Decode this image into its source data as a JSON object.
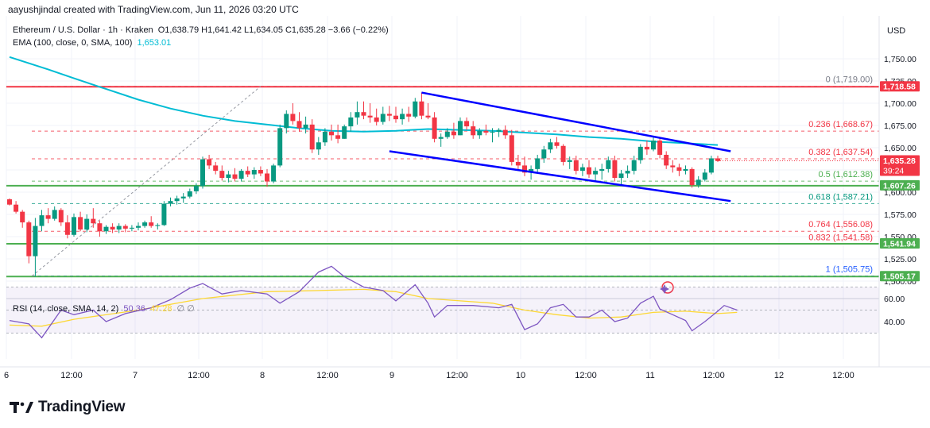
{
  "header": {
    "attribution": "aayushjindal created with TradingView.com, Jun 11, 2026 03:20 UTC"
  },
  "legend": {
    "symbol": "Ethereum / U.S. Dollar · 1h · Kraken",
    "ohlc": "O1,638.79 H1,641.42 L1,634.05 C1,635.28 −3.66 (−0.22%)",
    "ema_label": "EMA (100, close, 0, SMA, 100)",
    "ema_value": "1,653.01",
    "rsi_label": "RSI (14, close, SMA, 14, 2)",
    "rsi_value": "50.36",
    "rsi_sma_value": "47.28",
    "rsi_extra": "∅ ∅"
  },
  "currency": "USD",
  "logo_text": "TradingView",
  "chart_data": {
    "type": "candlestick",
    "symbol": "ETHUSD",
    "timeframe": "1h",
    "x_ticks": [
      "6",
      "12:00",
      "7",
      "12:00",
      "8",
      "12:00",
      "9",
      "12:00",
      "10",
      "12:00",
      "11",
      "12:00",
      "12",
      "12:00"
    ],
    "y_ticks": [
      "1,750.00",
      "1,725.00",
      "1,700.00",
      "1,675.00",
      "1,650.00",
      "1,625.00",
      "1,600.00",
      "1,575.00",
      "1,550.00",
      "1,525.00",
      "1,500.00"
    ],
    "ylim": [
      1490,
      1770
    ],
    "candles": [
      [
        1592,
        1593,
        1585,
        1586
      ],
      [
        1586,
        1590,
        1576,
        1578
      ],
      [
        1578,
        1580,
        1560,
        1566
      ],
      [
        1566,
        1568,
        1520,
        1528
      ],
      [
        1528,
        1571,
        1505,
        1562
      ],
      [
        1562,
        1580,
        1556,
        1574
      ],
      [
        1574,
        1582,
        1565,
        1570
      ],
      [
        1570,
        1584,
        1568,
        1580
      ],
      [
        1580,
        1582,
        1562,
        1566
      ],
      [
        1566,
        1574,
        1548,
        1552
      ],
      [
        1552,
        1576,
        1550,
        1572
      ],
      [
        1572,
        1578,
        1556,
        1558
      ],
      [
        1558,
        1575,
        1555,
        1570
      ],
      [
        1570,
        1582,
        1560,
        1565
      ],
      [
        1565,
        1568,
        1550,
        1556
      ],
      [
        1556,
        1563,
        1553,
        1561
      ],
      [
        1561,
        1565,
        1554,
        1558
      ],
      [
        1558,
        1565,
        1554,
        1562
      ],
      [
        1562,
        1564,
        1555,
        1559
      ],
      [
        1559,
        1563,
        1556,
        1560
      ],
      [
        1560,
        1566,
        1557,
        1562
      ],
      [
        1562,
        1568,
        1560,
        1566
      ],
      [
        1566,
        1573,
        1560,
        1562
      ],
      [
        1562,
        1565,
        1558,
        1563
      ],
      [
        1563,
        1590,
        1562,
        1587
      ],
      [
        1587,
        1594,
        1584,
        1590
      ],
      [
        1590,
        1596,
        1586,
        1593
      ],
      [
        1593,
        1599,
        1588,
        1595
      ],
      [
        1595,
        1604,
        1593,
        1601
      ],
      [
        1601,
        1610,
        1598,
        1607
      ],
      [
        1607,
        1640,
        1604,
        1637
      ],
      [
        1637,
        1642,
        1626,
        1630
      ],
      [
        1630,
        1634,
        1620,
        1624
      ],
      [
        1624,
        1630,
        1613,
        1616
      ],
      [
        1616,
        1624,
        1611,
        1620
      ],
      [
        1620,
        1627,
        1612,
        1615
      ],
      [
        1615,
        1626,
        1612,
        1624
      ],
      [
        1624,
        1629,
        1617,
        1620
      ],
      [
        1620,
        1628,
        1615,
        1625
      ],
      [
        1625,
        1629,
        1618,
        1621
      ],
      [
        1621,
        1626,
        1606,
        1612
      ],
      [
        1612,
        1632,
        1610,
        1630
      ],
      [
        1630,
        1676,
        1628,
        1672
      ],
      [
        1672,
        1692,
        1666,
        1688
      ],
      [
        1688,
        1700,
        1676,
        1680
      ],
      [
        1680,
        1690,
        1668,
        1672
      ],
      [
        1672,
        1685,
        1666,
        1676
      ],
      [
        1676,
        1682,
        1644,
        1648
      ],
      [
        1648,
        1662,
        1642,
        1656
      ],
      [
        1656,
        1672,
        1652,
        1668
      ],
      [
        1668,
        1676,
        1658,
        1664
      ],
      [
        1664,
        1676,
        1655,
        1660
      ],
      [
        1660,
        1676,
        1660,
        1674
      ],
      [
        1674,
        1690,
        1668,
        1684
      ],
      [
        1684,
        1702,
        1676,
        1690
      ],
      [
        1690,
        1702,
        1682,
        1686
      ],
      [
        1686,
        1700,
        1678,
        1684
      ],
      [
        1684,
        1694,
        1675,
        1679
      ],
      [
        1679,
        1696,
        1676,
        1688
      ],
      [
        1688,
        1697,
        1680,
        1686
      ],
      [
        1686,
        1696,
        1678,
        1682
      ],
      [
        1682,
        1694,
        1676,
        1688
      ],
      [
        1688,
        1696,
        1679,
        1685
      ],
      [
        1685,
        1706,
        1683,
        1702
      ],
      [
        1702,
        1712,
        1682,
        1686
      ],
      [
        1686,
        1700,
        1682,
        1684
      ],
      [
        1684,
        1690,
        1656,
        1660
      ],
      [
        1660,
        1666,
        1651,
        1662
      ],
      [
        1662,
        1672,
        1660,
        1668
      ],
      [
        1668,
        1678,
        1660,
        1664
      ],
      [
        1664,
        1684,
        1664,
        1680
      ],
      [
        1680,
        1684,
        1670,
        1674
      ],
      [
        1674,
        1680,
        1660,
        1664
      ],
      [
        1664,
        1672,
        1660,
        1669
      ],
      [
        1669,
        1676,
        1664,
        1667
      ],
      [
        1667,
        1672,
        1656,
        1668
      ],
      [
        1668,
        1672,
        1662,
        1670
      ],
      [
        1670,
        1675,
        1660,
        1664
      ],
      [
        1664,
        1670,
        1630,
        1634
      ],
      [
        1634,
        1642,
        1625,
        1630
      ],
      [
        1630,
        1640,
        1618,
        1622
      ],
      [
        1622,
        1630,
        1614,
        1626
      ],
      [
        1626,
        1642,
        1622,
        1638
      ],
      [
        1638,
        1652,
        1633,
        1648
      ],
      [
        1648,
        1660,
        1644,
        1656
      ],
      [
        1656,
        1662,
        1649,
        1652
      ],
      [
        1652,
        1654,
        1630,
        1634
      ],
      [
        1634,
        1640,
        1626,
        1636
      ],
      [
        1636,
        1641,
        1620,
        1624
      ],
      [
        1624,
        1632,
        1618,
        1628
      ],
      [
        1628,
        1636,
        1616,
        1620
      ],
      [
        1620,
        1628,
        1612,
        1624
      ],
      [
        1624,
        1632,
        1614,
        1626
      ],
      [
        1626,
        1640,
        1622,
        1636
      ],
      [
        1636,
        1641,
        1612,
        1616
      ],
      [
        1616,
        1625,
        1608,
        1621
      ],
      [
        1621,
        1630,
        1616,
        1624
      ],
      [
        1624,
        1641,
        1620,
        1636
      ],
      [
        1636,
        1654,
        1632,
        1651
      ],
      [
        1651,
        1658,
        1642,
        1648
      ],
      [
        1648,
        1662,
        1646,
        1658
      ],
      [
        1658,
        1661,
        1638,
        1642
      ],
      [
        1642,
        1646,
        1626,
        1630
      ],
      [
        1630,
        1636,
        1622,
        1628
      ],
      [
        1628,
        1632,
        1618,
        1624
      ],
      [
        1624,
        1630,
        1620,
        1626
      ],
      [
        1626,
        1628,
        1605,
        1608
      ],
      [
        1608,
        1618,
        1605,
        1614
      ],
      [
        1614,
        1626,
        1612,
        1622
      ],
      [
        1622,
        1641,
        1620,
        1638
      ],
      [
        1638,
        1641,
        1634,
        1635
      ]
    ],
    "ema_100": [
      [
        0,
        1752
      ],
      [
        6,
        1738
      ],
      [
        10,
        1728
      ],
      [
        15,
        1716
      ],
      [
        20,
        1704
      ],
      [
        25,
        1694
      ],
      [
        30,
        1686
      ],
      [
        35,
        1680
      ],
      [
        40,
        1676
      ],
      [
        45,
        1672
      ],
      [
        50,
        1669
      ],
      [
        55,
        1668
      ],
      [
        60,
        1669
      ],
      [
        65,
        1671
      ],
      [
        70,
        1670
      ],
      [
        75,
        1669
      ],
      [
        80,
        1667
      ],
      [
        85,
        1665
      ],
      [
        90,
        1662
      ],
      [
        95,
        1660
      ],
      [
        100,
        1657
      ],
      [
        105,
        1655
      ],
      [
        110,
        1653
      ]
    ],
    "rsi": [
      [
        0,
        41
      ],
      [
        3,
        38
      ],
      [
        5,
        26
      ],
      [
        8,
        50
      ],
      [
        10,
        46
      ],
      [
        13,
        50
      ],
      [
        15,
        40
      ],
      [
        18,
        47
      ],
      [
        22,
        52
      ],
      [
        25,
        59
      ],
      [
        28,
        69
      ],
      [
        30,
        73
      ],
      [
        33,
        64
      ],
      [
        36,
        67
      ],
      [
        40,
        64
      ],
      [
        42,
        56
      ],
      [
        45,
        66
      ],
      [
        48,
        83
      ],
      [
        50,
        88
      ],
      [
        52,
        79
      ],
      [
        55,
        70
      ],
      [
        58,
        67
      ],
      [
        60,
        58
      ],
      [
        63,
        72
      ],
      [
        65,
        56
      ],
      [
        66,
        44
      ],
      [
        68,
        54
      ],
      [
        72,
        54
      ],
      [
        76,
        52
      ],
      [
        78,
        55
      ],
      [
        80,
        33
      ],
      [
        82,
        38
      ],
      [
        84,
        52
      ],
      [
        86,
        55
      ],
      [
        88,
        44
      ],
      [
        90,
        44
      ],
      [
        92,
        50
      ],
      [
        94,
        40
      ],
      [
        96,
        43
      ],
      [
        98,
        56
      ],
      [
        100,
        62
      ],
      [
        101,
        51
      ],
      [
        103,
        46
      ],
      [
        105,
        41
      ],
      [
        106,
        32
      ],
      [
        108,
        40
      ],
      [
        110,
        49
      ],
      [
        111,
        54
      ],
      [
        113,
        50
      ]
    ],
    "rsi_sma": [
      [
        0,
        37
      ],
      [
        5,
        36
      ],
      [
        10,
        42
      ],
      [
        20,
        50
      ],
      [
        30,
        60
      ],
      [
        40,
        66
      ],
      [
        48,
        67
      ],
      [
        55,
        68
      ],
      [
        60,
        66
      ],
      [
        65,
        60
      ],
      [
        70,
        58
      ],
      [
        75,
        56
      ],
      [
        80,
        50
      ],
      [
        85,
        46
      ],
      [
        90,
        43
      ],
      [
        95,
        44
      ],
      [
        100,
        48
      ],
      [
        105,
        49
      ],
      [
        110,
        47
      ],
      [
        113,
        48
      ]
    ],
    "rsi_ylim": [
      20,
      100
    ],
    "rsi_ticks": [
      "60.00",
      "40.00"
    ],
    "horizontal_levels": [
      {
        "price": 1718.58,
        "label": "1,718.58",
        "color": "#f23645",
        "type": "resistance"
      },
      {
        "price": 1607.26,
        "label": "1,607.26",
        "color": "#4caf50",
        "type": "support"
      },
      {
        "price": 1541.94,
        "label": "1,541.94",
        "color": "#4caf50",
        "type": "support"
      },
      {
        "price": 1505.17,
        "label": "1,505.17",
        "color": "#4caf50",
        "type": "support"
      }
    ],
    "fib_levels": [
      {
        "ratio": "0",
        "price": 1719.0,
        "label": "0 (1,719.00)",
        "color": "#787b86"
      },
      {
        "ratio": "0.236",
        "price": 1668.67,
        "label": "0.236 (1,668.67)",
        "color": "#f23645"
      },
      {
        "ratio": "0.382",
        "price": 1637.54,
        "label": "0.382 (1,637.54)",
        "color": "#f23645"
      },
      {
        "ratio": "0.5",
        "price": 1612.38,
        "label": "0.5 (1,612.38)",
        "color": "#4caf50"
      },
      {
        "ratio": "0.618",
        "price": 1587.21,
        "label": "0.618 (1,587.21)",
        "color": "#089981"
      },
      {
        "ratio": "0.764",
        "price": 1556.08,
        "label": "0.764 (1,556.08)",
        "color": "#f23645"
      },
      {
        "ratio": "0.832",
        "price": 1541.58,
        "label": "0.832 (1,541.58)",
        "color": "#f23645"
      },
      {
        "ratio": "1",
        "price": 1505.75,
        "label": "1 (1,505.75)",
        "color": "#2962ff"
      }
    ],
    "channel": {
      "upper": [
        [
          64,
          1712
        ],
        [
          112,
          1646
        ]
      ],
      "lower": [
        [
          59,
          1646
        ],
        [
          112,
          1590
        ]
      ],
      "color": "#0000ff"
    },
    "last_price": "1,635.28",
    "countdown": "39:24",
    "colors": {
      "up": "#089981",
      "down": "#f23645",
      "ema": "#00bcd4",
      "rsi": "#7e57c2",
      "rsi_sma": "#fdd835"
    }
  }
}
